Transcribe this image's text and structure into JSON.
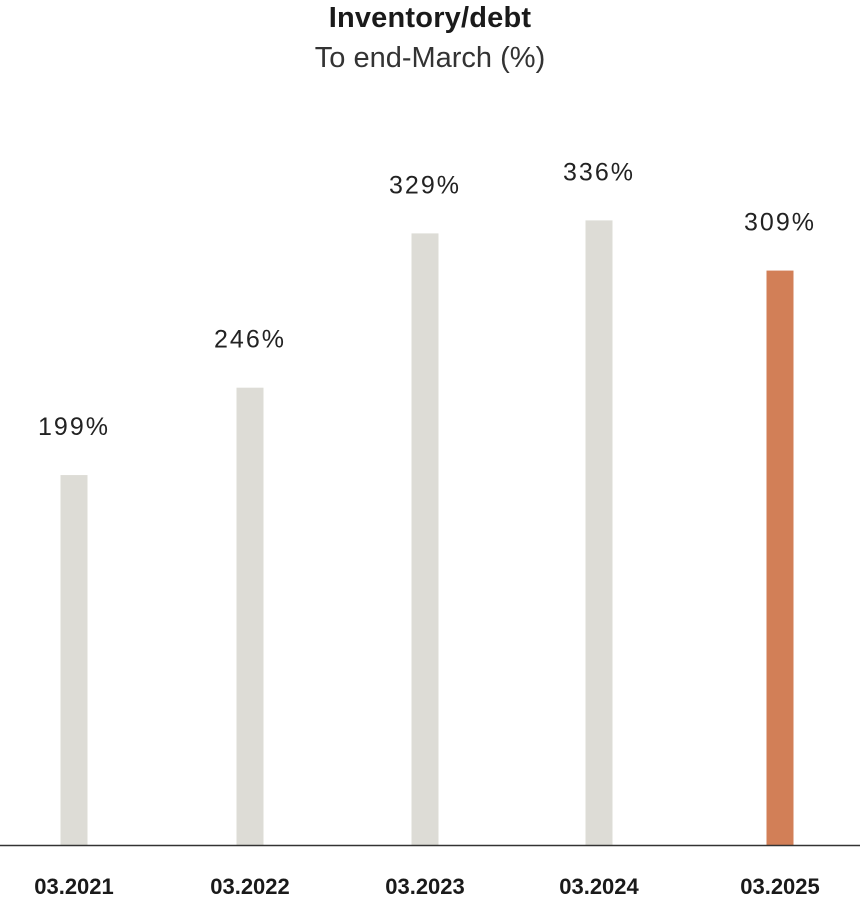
{
  "chart_data": {
    "type": "bar",
    "title": "Inventory/debt",
    "subtitle": "To end-March (%)",
    "categories": [
      "03.2021",
      "03.2022",
      "03.2023",
      "03.2024",
      "03.2025"
    ],
    "values": [
      199,
      246,
      329,
      336,
      309
    ],
    "value_labels": [
      "199%",
      "246%",
      "329%",
      "336%",
      "309%"
    ],
    "ylim": [
      0,
      390
    ],
    "grid": false,
    "legend": "none",
    "colors": {
      "default_bar": "#dddcd6",
      "highlight_bar": "#d27f57",
      "axis": "#333333"
    },
    "highlight_index": 4
  }
}
